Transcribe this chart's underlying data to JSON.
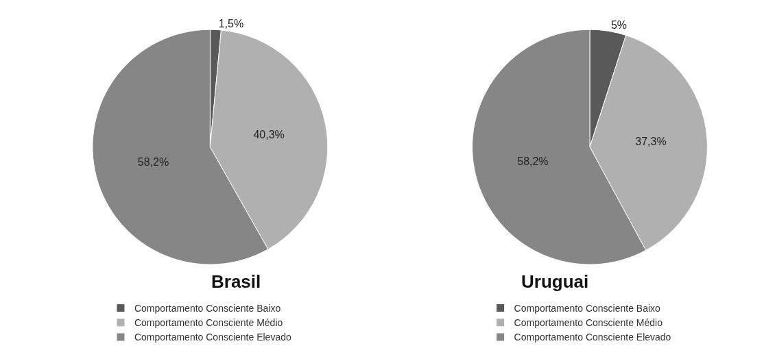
{
  "chart_data": [
    {
      "type": "pie",
      "title": "Brasil",
      "categories": [
        "Comportamento Consciente Baixo",
        "Comportamento Consciente Médio",
        "Comportamento Consciente Elevado"
      ],
      "values": [
        1.5,
        40.3,
        58.2
      ],
      "colors": [
        "#595959",
        "#b0b0b0",
        "#868686"
      ],
      "value_labels": [
        "1,5%",
        "40,3%",
        "58,2%"
      ],
      "legend": "bottom"
    },
    {
      "type": "pie",
      "title": "Uruguai",
      "categories": [
        "Comportamento Consciente Baixo",
        "Comportamento Consciente Médio",
        "Comportamento Consciente Elevado"
      ],
      "values": [
        5,
        37.3,
        58.2
      ],
      "colors": [
        "#595959",
        "#b0b0b0",
        "#868686"
      ],
      "value_labels": [
        "5%",
        "37,3%",
        "58,2%"
      ],
      "legend": "bottom"
    }
  ]
}
